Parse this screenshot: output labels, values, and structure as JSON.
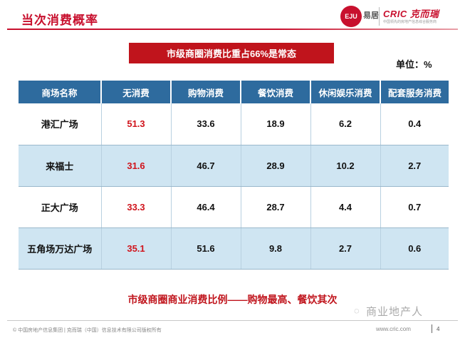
{
  "slide": {
    "title": "当次消费概率"
  },
  "logos": {
    "eju_mark": "EJU",
    "eju_text": "易居",
    "cric_text": "CRIC 克而瑞",
    "cric_sub": "中国领先的房地产信息综合服务商"
  },
  "banner": "市级商圈消费比重占66%是常态",
  "unit": "单位：%",
  "table": {
    "headers": [
      "商场名称",
      "无消费",
      "购物消费",
      "餐饮消费",
      "休闲娱乐消费",
      "配套服务消费"
    ],
    "rows": [
      [
        "港汇广场",
        "51.3",
        "33.6",
        "18.9",
        "6.2",
        "0.4"
      ],
      [
        "来福士",
        "31.6",
        "46.7",
        "28.9",
        "10.2",
        "2.7"
      ],
      [
        "正大广场",
        "33.3",
        "46.4",
        "28.7",
        "4.4",
        "0.7"
      ],
      [
        "五角场万达广场",
        "35.1",
        "51.6",
        "9.8",
        "2.7",
        "0.6"
      ]
    ]
  },
  "conclusion": "市级商圈商业消费比例——购物最高、餐饮其次",
  "watermark": "商业地产人",
  "footer": {
    "copyright": "© 中国房地产信息集团 | 克而瑞（中国）信息技术有限公司版权所有",
    "site": "www.cric.com",
    "page": "4"
  }
}
